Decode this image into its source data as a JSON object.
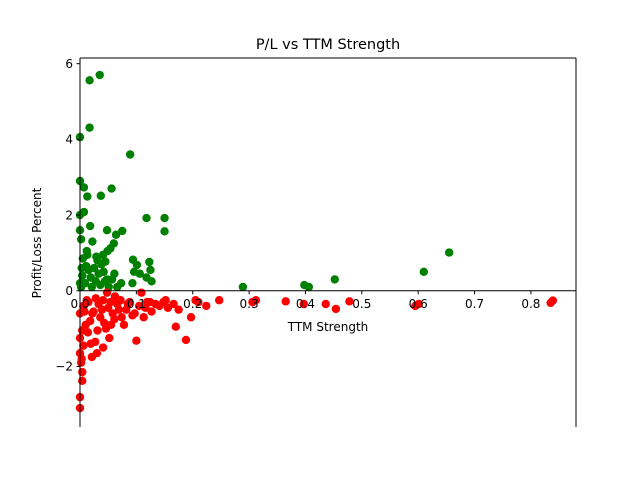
{
  "chart_data": {
    "type": "scatter",
    "title": "P/L vs TTM Strength",
    "xlabel": "TTM Strength",
    "ylabel": "Profit/Loss Percent",
    "xlim": [
      0.0,
      0.88
    ],
    "ylim": [
      -3.6,
      6.15
    ],
    "xticks": [
      "0.0",
      "0.1",
      "0.2",
      "0.3",
      "0.4",
      "0.5",
      "0.6",
      "0.7",
      "0.8"
    ],
    "yticks": [
      "−2",
      "0",
      "2",
      "4",
      "6"
    ],
    "xtick_values": [
      0.0,
      0.1,
      0.2,
      0.3,
      0.4,
      0.5,
      0.6,
      0.7,
      0.8
    ],
    "ytick_values": [
      -2,
      0,
      2,
      4,
      6
    ],
    "grid": false,
    "legend": "none",
    "spines": "left-and-bottom-at-zero",
    "series": [
      {
        "color": "#008000",
        "points": [
          [
            0.0,
            4.06
          ],
          [
            0.017,
            5.56
          ],
          [
            0.035,
            5.7
          ],
          [
            0.017,
            4.31
          ],
          [
            0.089,
            3.6
          ],
          [
            0.0,
            2.9
          ],
          [
            0.007,
            2.73
          ],
          [
            0.013,
            2.49
          ],
          [
            0.056,
            2.7
          ],
          [
            0.037,
            2.51
          ],
          [
            0.0,
            2.0
          ],
          [
            0.007,
            2.08
          ],
          [
            0.118,
            1.92
          ],
          [
            0.15,
            1.92
          ],
          [
            0.15,
            1.57
          ],
          [
            0.0,
            1.6
          ],
          [
            0.018,
            1.71
          ],
          [
            0.048,
            1.6
          ],
          [
            0.064,
            1.48
          ],
          [
            0.075,
            1.58
          ],
          [
            0.002,
            1.36
          ],
          [
            0.022,
            1.3
          ],
          [
            0.06,
            1.25
          ],
          [
            0.054,
            1.12
          ],
          [
            0.049,
            1.05
          ],
          [
            0.012,
            1.05
          ],
          [
            0.029,
            0.9
          ],
          [
            0.041,
            0.95
          ],
          [
            0.655,
            1.01
          ],
          [
            0.61,
            0.5
          ],
          [
            0.094,
            0.82
          ],
          [
            0.123,
            0.76
          ],
          [
            0.101,
            0.68
          ],
          [
            0.096,
            0.5
          ],
          [
            0.106,
            0.45
          ],
          [
            0.125,
            0.55
          ],
          [
            0.118,
            0.35
          ],
          [
            0.127,
            0.25
          ],
          [
            0.093,
            0.2
          ],
          [
            0.073,
            0.2
          ],
          [
            0.066,
            0.1
          ],
          [
            0.057,
            0.3
          ],
          [
            0.045,
            0.77
          ],
          [
            0.005,
            0.85
          ],
          [
            0.011,
            0.65
          ],
          [
            0.004,
            0.4
          ],
          [
            0.009,
            0.2
          ],
          [
            0.002,
            0.1
          ],
          [
            0.015,
            0.55
          ],
          [
            0.019,
            0.35
          ],
          [
            0.025,
            0.6
          ],
          [
            0.028,
            0.25
          ],
          [
            0.033,
            0.45
          ],
          [
            0.036,
            0.15
          ],
          [
            0.042,
            0.5
          ],
          [
            0.048,
            0.3
          ],
          [
            0.038,
            0.7
          ],
          [
            0.051,
            0.1
          ],
          [
            0.061,
            0.45
          ],
          [
            0.0,
            0.2
          ],
          [
            0.003,
            0.6
          ],
          [
            0.021,
            0.1
          ],
          [
            0.031,
            0.8
          ],
          [
            0.044,
            0.25
          ],
          [
            0.013,
            0.95
          ],
          [
            0.289,
            0.1
          ],
          [
            0.398,
            0.15
          ],
          [
            0.406,
            0.1
          ],
          [
            0.452,
            0.3
          ]
        ]
      },
      {
        "color": "#ff0000",
        "points": [
          [
            0.0,
            -3.1
          ],
          [
            0.0,
            -2.81
          ],
          [
            0.004,
            -2.38
          ],
          [
            0.004,
            -2.15
          ],
          [
            0.002,
            -1.9
          ],
          [
            0.0,
            -1.65
          ],
          [
            0.006,
            -1.45
          ],
          [
            0.0,
            -1.25
          ],
          [
            0.004,
            -1.05
          ],
          [
            0.01,
            -0.9
          ],
          [
            0.0,
            -0.6
          ],
          [
            0.006,
            -0.4
          ],
          [
            0.012,
            -0.25
          ],
          [
            0.021,
            -1.75
          ],
          [
            0.027,
            -1.35
          ],
          [
            0.03,
            -1.65
          ],
          [
            0.041,
            -1.5
          ],
          [
            0.052,
            -1.25
          ],
          [
            0.046,
            -1.0
          ],
          [
            0.055,
            -0.9
          ],
          [
            0.036,
            -0.7
          ],
          [
            0.018,
            -0.8
          ],
          [
            0.024,
            -0.55
          ],
          [
            0.033,
            -0.35
          ],
          [
            0.041,
            -0.25
          ],
          [
            0.05,
            -0.45
          ],
          [
            0.058,
            -0.6
          ],
          [
            0.066,
            -0.35
          ],
          [
            0.074,
            -0.7
          ],
          [
            0.082,
            -0.5
          ],
          [
            0.088,
            -0.3
          ],
          [
            0.097,
            -0.6
          ],
          [
            0.1,
            -1.32
          ],
          [
            0.105,
            -0.4
          ],
          [
            0.109,
            -0.05
          ],
          [
            0.113,
            -0.7
          ],
          [
            0.119,
            -0.3
          ],
          [
            0.127,
            -0.55
          ],
          [
            0.134,
            -0.35
          ],
          [
            0.141,
            -0.4
          ],
          [
            0.148,
            -0.3
          ],
          [
            0.156,
            -0.45
          ],
          [
            0.166,
            -0.35
          ],
          [
            0.17,
            -0.95
          ],
          [
            0.175,
            -0.5
          ],
          [
            0.188,
            -1.3
          ],
          [
            0.197,
            -0.7
          ],
          [
            0.205,
            -0.25
          ],
          [
            0.21,
            -0.3
          ],
          [
            0.224,
            -0.4
          ],
          [
            0.247,
            -0.25
          ],
          [
            0.306,
            -0.3
          ],
          [
            0.312,
            -0.25
          ],
          [
            0.365,
            -0.28
          ],
          [
            0.397,
            -0.35
          ],
          [
            0.436,
            -0.35
          ],
          [
            0.454,
            -0.48
          ],
          [
            0.478,
            -0.28
          ],
          [
            0.595,
            -0.4
          ],
          [
            0.601,
            -0.35
          ],
          [
            0.835,
            -0.32
          ],
          [
            0.839,
            -0.26
          ],
          [
            0.014,
            -1.1
          ],
          [
            0.022,
            -0.6
          ],
          [
            0.031,
            -1.05
          ],
          [
            0.043,
            -0.85
          ],
          [
            0.061,
            -0.75
          ],
          [
            0.069,
            -0.5
          ],
          [
            0.078,
            -0.9
          ],
          [
            0.093,
            -0.65
          ],
          [
            0.015,
            -0.3
          ],
          [
            0.028,
            -0.2
          ],
          [
            0.039,
            -0.5
          ],
          [
            0.054,
            -0.3
          ],
          [
            0.072,
            -0.25
          ],
          [
            0.085,
            -0.35
          ],
          [
            0.124,
            -0.3
          ],
          [
            0.152,
            -0.25
          ],
          [
            0.008,
            -0.55
          ],
          [
            0.003,
            -1.8
          ],
          [
            0.019,
            -1.4
          ],
          [
            0.048,
            -0.05
          ],
          [
            0.062,
            -0.15
          ],
          [
            0.116,
            -0.45
          ]
        ]
      }
    ]
  }
}
